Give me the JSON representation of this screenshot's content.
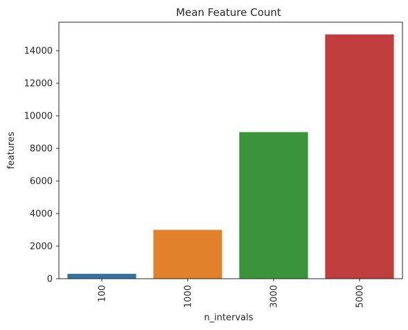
{
  "chart_data": {
    "type": "bar",
    "title": "Mean Feature Count",
    "xlabel": "n_intervals",
    "ylabel": "features",
    "categories": [
      "100",
      "1000",
      "3000",
      "5000"
    ],
    "values": [
      300,
      3000,
      9000,
      15000
    ],
    "colors": [
      "#3274a1",
      "#e1812c",
      "#3a923a",
      "#c03d3e"
    ],
    "ylim": [
      0,
      15750
    ],
    "yticks": [
      0,
      2000,
      4000,
      6000,
      8000,
      10000,
      12000,
      14000
    ],
    "ytick_labels": [
      "0",
      "2000",
      "4000",
      "6000",
      "8000",
      "10000",
      "12000",
      "14000"
    ],
    "grid": false,
    "legend": "none"
  }
}
